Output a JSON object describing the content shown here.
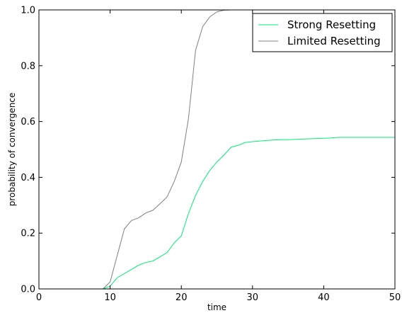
{
  "chart_data": {
    "type": "line",
    "title": "",
    "xlabel": "time",
    "ylabel": "probability of convergence",
    "xlim": [
      0,
      50
    ],
    "ylim": [
      0,
      1
    ],
    "xticks": [
      0,
      10,
      20,
      30,
      40,
      50
    ],
    "yticks": [
      0.0,
      0.2,
      0.4,
      0.6,
      0.8,
      1.0
    ],
    "xtick_labels": [
      "0",
      "10",
      "20",
      "30",
      "40",
      "50"
    ],
    "ytick_labels": [
      "0.0",
      "0.2",
      "0.4",
      "0.6",
      "0.8",
      "1.0"
    ],
    "grid": false,
    "legend_position": "top-right",
    "series": [
      {
        "name": "Strong Resetting",
        "color": "#00ee76",
        "x": [
          0,
          9,
          10,
          11,
          12,
          13,
          14,
          15,
          16,
          17,
          18,
          19,
          20,
          21,
          22,
          23,
          24,
          25,
          26,
          27,
          28,
          29,
          30,
          31,
          32,
          33,
          34,
          35,
          36,
          37,
          38,
          39,
          40,
          41,
          42,
          43,
          44,
          45,
          46,
          47,
          48,
          49,
          50
        ],
        "values": [
          0,
          0,
          0.01,
          0.04,
          0.055,
          0.07,
          0.085,
          0.095,
          0.1,
          0.115,
          0.13,
          0.165,
          0.19,
          0.27,
          0.335,
          0.385,
          0.425,
          0.455,
          0.48,
          0.508,
          0.515,
          0.525,
          0.528,
          0.53,
          0.532,
          0.534,
          0.535,
          0.535,
          0.536,
          0.537,
          0.538,
          0.539,
          0.54,
          0.541,
          0.543,
          0.543,
          0.543,
          0.543,
          0.543,
          0.543,
          0.543,
          0.543,
          0.543
        ]
      },
      {
        "name": "Limited Resetting",
        "color": "#808080",
        "x": [
          0,
          9,
          10,
          11,
          12,
          13,
          14,
          15,
          16,
          17,
          18,
          19,
          20,
          21,
          22,
          23,
          24,
          25,
          26,
          27,
          28,
          29,
          30,
          35,
          40,
          45,
          50
        ],
        "values": [
          0,
          0,
          0.025,
          0.12,
          0.215,
          0.245,
          0.255,
          0.272,
          0.282,
          0.305,
          0.33,
          0.385,
          0.455,
          0.61,
          0.855,
          0.94,
          0.975,
          0.993,
          0.999,
          1.0,
          1.0,
          1.0,
          1.0,
          1.0,
          1.0,
          1.0,
          1.0
        ]
      }
    ]
  }
}
